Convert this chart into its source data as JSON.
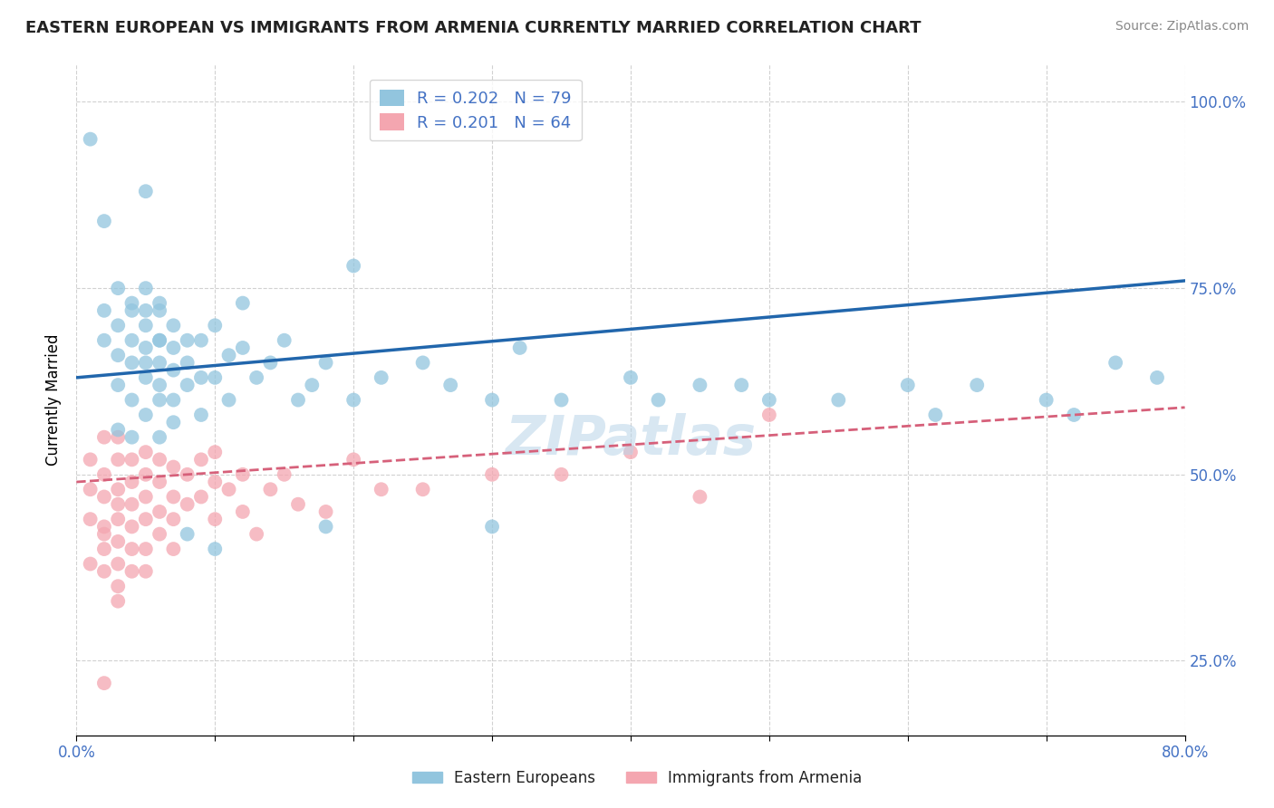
{
  "title": "EASTERN EUROPEAN VS IMMIGRANTS FROM ARMENIA CURRENTLY MARRIED CORRELATION CHART",
  "source": "Source: ZipAtlas.com",
  "ylabel": "Currently Married",
  "x_min": 0.0,
  "x_max": 0.8,
  "y_min": 0.15,
  "y_max": 1.05,
  "y_ticks": [
    0.25,
    0.5,
    0.75,
    1.0
  ],
  "y_tick_labels": [
    "25.0%",
    "50.0%",
    "75.0%",
    "100.0%"
  ],
  "x_ticks": [
    0.0,
    0.1,
    0.2,
    0.3,
    0.4,
    0.5,
    0.6,
    0.7,
    0.8
  ],
  "x_tick_labels": [
    "0.0%",
    "",
    "",
    "",
    "",
    "",
    "",
    "",
    "80.0%"
  ],
  "blue_R": 0.202,
  "blue_N": 79,
  "pink_R": 0.201,
  "pink_N": 64,
  "blue_color": "#92c5de",
  "pink_color": "#f4a6b0",
  "blue_line_color": "#2166ac",
  "pink_line_color": "#d6607a",
  "legend_label_blue": "Eastern Europeans",
  "legend_label_pink": "Immigrants from Armenia",
  "watermark": "ZIPatlas",
  "blue_line_x0": 0.0,
  "blue_line_y0": 0.63,
  "blue_line_x1": 0.8,
  "blue_line_y1": 0.76,
  "pink_line_x0": 0.0,
  "pink_line_y0": 0.49,
  "pink_line_x1": 0.8,
  "pink_line_y1": 0.59,
  "blue_scatter_x": [
    0.01,
    0.02,
    0.02,
    0.02,
    0.03,
    0.03,
    0.03,
    0.03,
    0.04,
    0.04,
    0.04,
    0.04,
    0.04,
    0.05,
    0.05,
    0.05,
    0.05,
    0.05,
    0.05,
    0.05,
    0.06,
    0.06,
    0.06,
    0.06,
    0.06,
    0.06,
    0.06,
    0.07,
    0.07,
    0.07,
    0.07,
    0.07,
    0.08,
    0.08,
    0.08,
    0.09,
    0.09,
    0.09,
    0.1,
    0.1,
    0.11,
    0.11,
    0.12,
    0.12,
    0.13,
    0.14,
    0.15,
    0.16,
    0.17,
    0.18,
    0.2,
    0.22,
    0.25,
    0.27,
    0.3,
    0.32,
    0.35,
    0.4,
    0.42,
    0.45,
    0.48,
    0.5,
    0.55,
    0.6,
    0.62,
    0.65,
    0.7,
    0.72,
    0.75,
    0.78,
    0.2,
    0.05,
    0.3,
    0.18,
    0.1,
    0.08,
    0.06,
    0.04,
    0.03
  ],
  "blue_scatter_y": [
    0.95,
    0.84,
    0.68,
    0.72,
    0.7,
    0.66,
    0.75,
    0.62,
    0.73,
    0.68,
    0.65,
    0.72,
    0.6,
    0.75,
    0.7,
    0.67,
    0.63,
    0.72,
    0.58,
    0.65,
    0.72,
    0.68,
    0.65,
    0.73,
    0.62,
    0.68,
    0.6,
    0.7,
    0.67,
    0.64,
    0.6,
    0.57,
    0.68,
    0.65,
    0.62,
    0.68,
    0.63,
    0.58,
    0.7,
    0.63,
    0.66,
    0.6,
    0.73,
    0.67,
    0.63,
    0.65,
    0.68,
    0.6,
    0.62,
    0.65,
    0.6,
    0.63,
    0.65,
    0.62,
    0.6,
    0.67,
    0.6,
    0.63,
    0.6,
    0.62,
    0.62,
    0.6,
    0.6,
    0.62,
    0.58,
    0.62,
    0.6,
    0.58,
    0.65,
    0.63,
    0.78,
    0.88,
    0.43,
    0.43,
    0.4,
    0.42,
    0.55,
    0.55,
    0.56
  ],
  "pink_scatter_x": [
    0.01,
    0.01,
    0.01,
    0.01,
    0.02,
    0.02,
    0.02,
    0.02,
    0.02,
    0.02,
    0.02,
    0.03,
    0.03,
    0.03,
    0.03,
    0.03,
    0.03,
    0.03,
    0.03,
    0.03,
    0.04,
    0.04,
    0.04,
    0.04,
    0.04,
    0.04,
    0.05,
    0.05,
    0.05,
    0.05,
    0.05,
    0.05,
    0.06,
    0.06,
    0.06,
    0.06,
    0.07,
    0.07,
    0.07,
    0.07,
    0.08,
    0.08,
    0.09,
    0.09,
    0.1,
    0.1,
    0.1,
    0.11,
    0.12,
    0.12,
    0.13,
    0.14,
    0.15,
    0.16,
    0.18,
    0.2,
    0.22,
    0.25,
    0.3,
    0.35,
    0.4,
    0.45,
    0.5,
    0.02
  ],
  "pink_scatter_y": [
    0.52,
    0.48,
    0.44,
    0.38,
    0.55,
    0.5,
    0.47,
    0.43,
    0.42,
    0.4,
    0.37,
    0.55,
    0.52,
    0.48,
    0.46,
    0.44,
    0.41,
    0.38,
    0.35,
    0.33,
    0.52,
    0.49,
    0.46,
    0.43,
    0.4,
    0.37,
    0.53,
    0.5,
    0.47,
    0.44,
    0.4,
    0.37,
    0.52,
    0.49,
    0.45,
    0.42,
    0.51,
    0.47,
    0.44,
    0.4,
    0.5,
    0.46,
    0.52,
    0.47,
    0.53,
    0.49,
    0.44,
    0.48,
    0.5,
    0.45,
    0.42,
    0.48,
    0.5,
    0.46,
    0.45,
    0.52,
    0.48,
    0.48,
    0.5,
    0.5,
    0.53,
    0.47,
    0.58,
    0.22
  ]
}
